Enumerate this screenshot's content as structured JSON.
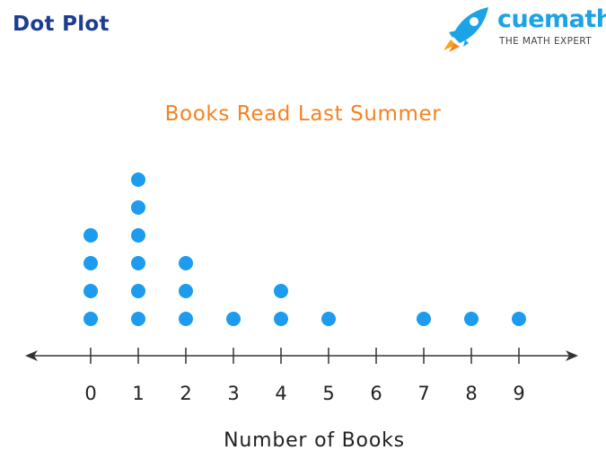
{
  "page_heading": "Dot Plot",
  "brand": {
    "name": "cuemath",
    "tagline": "THE MATH EXPERT",
    "name_color": "#1CA3E5",
    "tagline_color": "#444444",
    "logo_icon": "rocket-icon"
  },
  "colors": {
    "heading": "#1D3D8F",
    "title": "#F58220",
    "dot": "#1C9BEF",
    "axis": "#333333",
    "text": "#222222"
  },
  "chart_data": {
    "type": "dot-plot",
    "title": "Books Read Last Summer",
    "xlabel": "Number of Books",
    "ylabel": "",
    "categories": [
      "0",
      "1",
      "2",
      "3",
      "4",
      "5",
      "6",
      "7",
      "8",
      "9"
    ],
    "values": [
      4,
      6,
      3,
      1,
      2,
      1,
      0,
      1,
      1,
      1
    ],
    "grid": false,
    "axis_arrows": true
  }
}
